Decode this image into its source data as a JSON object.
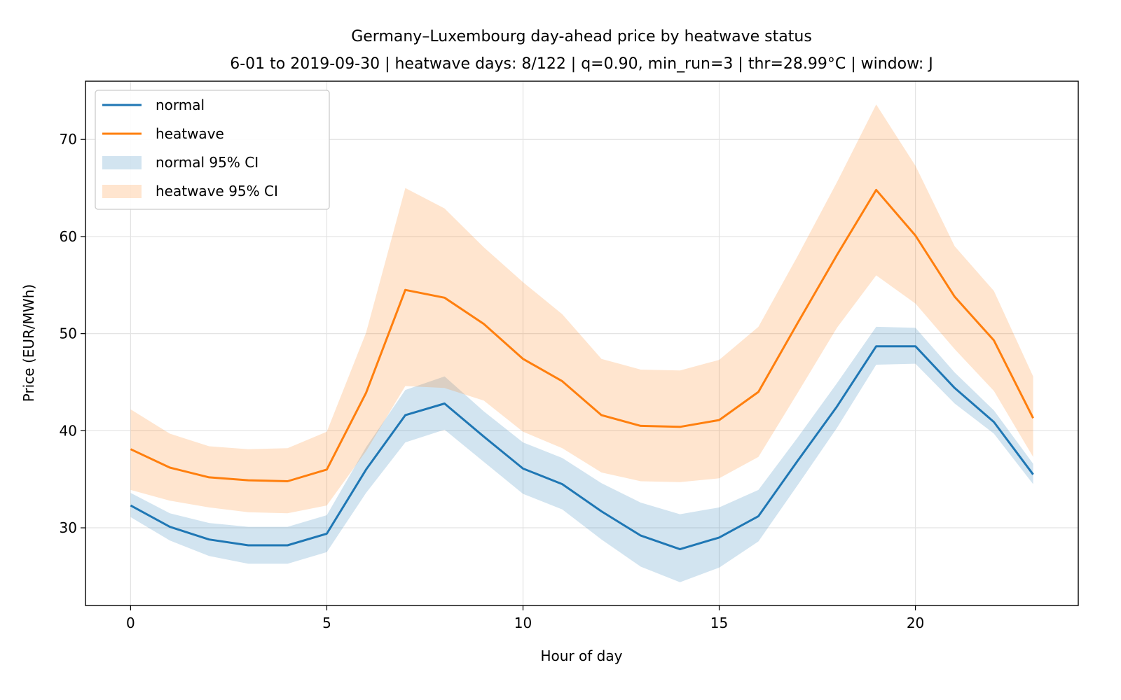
{
  "chart_data": {
    "type": "line",
    "title": "Germany–Luxembourg day-ahead price by heatwave status",
    "subtitle": "6-01 to 2019-09-30  |  heatwave days: 8/122  |  q=0.90, min_run=3  |  thr=28.99°C  |  window: J",
    "xlabel": "Hour of day",
    "ylabel": "Price (EUR/MWh)",
    "xlim": [
      -1.15,
      24.15
    ],
    "ylim": [
      22,
      76
    ],
    "xticks": [
      0,
      5,
      10,
      15,
      20
    ],
    "yticks": [
      30,
      40,
      50,
      60,
      70
    ],
    "grid": true,
    "legend_position": "top-left",
    "x": [
      0,
      1,
      2,
      3,
      4,
      5,
      6,
      7,
      8,
      9,
      10,
      11,
      12,
      13,
      14,
      15,
      16,
      17,
      18,
      19,
      20,
      21,
      22,
      23
    ],
    "series": [
      {
        "name": "normal",
        "color": "#1f77b4",
        "values": [
          32.3,
          30.1,
          28.8,
          28.2,
          28.2,
          29.4,
          36.0,
          41.6,
          42.8,
          39.4,
          36.1,
          34.5,
          31.7,
          29.2,
          27.8,
          29.0,
          31.2,
          36.9,
          42.5,
          48.7,
          48.7,
          44.4,
          40.9,
          35.5
        ]
      },
      {
        "name": "heatwave",
        "color": "#ff7f0e",
        "values": [
          38.1,
          36.2,
          35.2,
          34.9,
          34.8,
          36.0,
          43.9,
          54.5,
          53.7,
          51.0,
          47.4,
          45.1,
          41.6,
          40.5,
          40.4,
          41.1,
          44.0,
          51.1,
          58.1,
          64.8,
          60.1,
          53.8,
          49.3,
          41.3
        ]
      }
    ],
    "bands": [
      {
        "name": "normal 95% CI",
        "color": "#1f77b4",
        "opacity": 0.2,
        "lower": [
          31.1,
          28.7,
          27.1,
          26.3,
          26.3,
          27.5,
          33.6,
          38.8,
          40.1,
          36.8,
          33.5,
          31.9,
          28.8,
          26.0,
          24.4,
          25.9,
          28.6,
          34.4,
          40.3,
          46.8,
          46.9,
          42.8,
          39.7,
          34.5
        ],
        "upper": [
          33.6,
          31.5,
          30.5,
          30.1,
          30.1,
          31.3,
          38.3,
          44.2,
          45.6,
          42.0,
          38.8,
          37.2,
          34.6,
          32.6,
          31.4,
          32.1,
          33.9,
          39.3,
          44.9,
          50.7,
          50.6,
          46.0,
          42.1,
          36.6
        ]
      },
      {
        "name": "heatwave 95% CI",
        "color": "#ff7f0e",
        "opacity": 0.2,
        "lower": [
          33.9,
          32.8,
          32.1,
          31.6,
          31.5,
          32.3,
          37.9,
          44.6,
          44.4,
          43.1,
          39.9,
          38.2,
          35.7,
          34.8,
          34.7,
          35.1,
          37.3,
          43.9,
          50.6,
          56.0,
          53.1,
          48.4,
          44.1,
          37.3
        ],
        "upper": [
          42.2,
          39.7,
          38.4,
          38.1,
          38.2,
          39.9,
          50.1,
          65.0,
          62.9,
          58.9,
          55.3,
          52.0,
          47.4,
          46.3,
          46.2,
          47.3,
          50.7,
          58.0,
          65.6,
          73.6,
          67.3,
          59.0,
          54.4,
          45.6
        ]
      }
    ]
  }
}
